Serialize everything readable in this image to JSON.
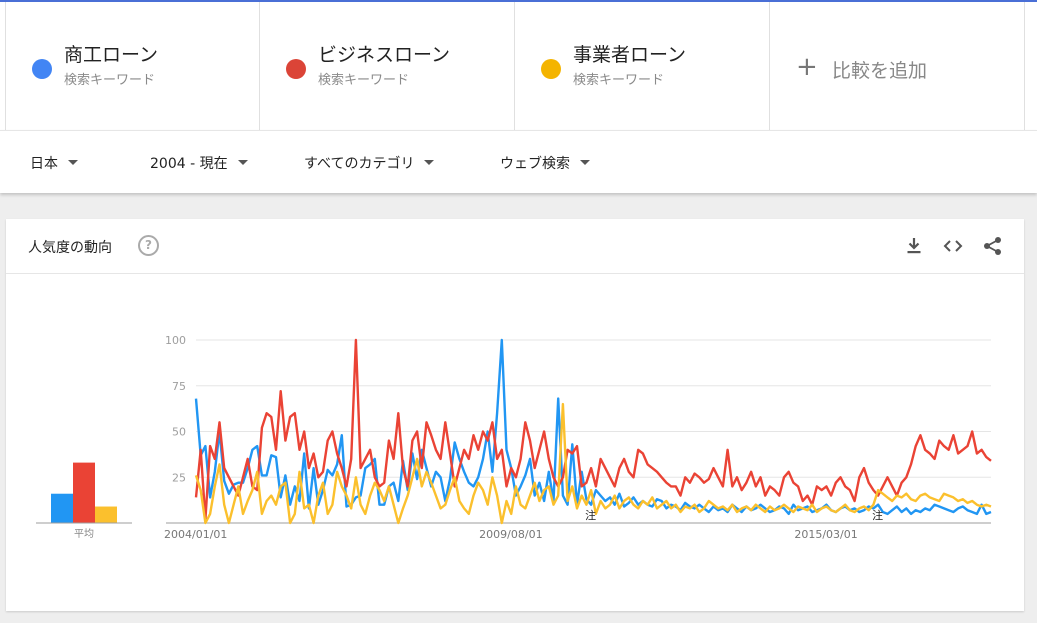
{
  "compare": {
    "terms": [
      {
        "name": "商工ローン",
        "sub": "検索キーワード",
        "color": "#4285f4"
      },
      {
        "name": "ビジネスローン",
        "sub": "検索キーワード",
        "color": "#db4437"
      },
      {
        "name": "事業者ローン",
        "sub": "検索キーワード",
        "color": "#f4b400"
      }
    ],
    "add_label": "比較を追加",
    "add_icon": "plus-icon"
  },
  "filters": {
    "region": "日本",
    "period": "2004 - 現在",
    "category": "すべてのカテゴリ",
    "search_type": "ウェブ検索"
  },
  "card": {
    "title": "人気度の動向",
    "help_icon": "help-icon",
    "download_icon": "download-icon",
    "embed_icon": "embed-icon",
    "share_icon": "share-icon"
  },
  "chart_data": {
    "type": "line",
    "y_ticks": [
      "100",
      "75",
      "50",
      "25"
    ],
    "ylim": [
      0,
      100
    ],
    "x_tick_labels": [
      "2004/01/01",
      "2009/08/01",
      "2015/03/01"
    ],
    "x_tick_positions": [
      0,
      67,
      134
    ],
    "n_points": 170,
    "notes": [
      {
        "label": "注",
        "index": 84
      },
      {
        "label": "注",
        "index": 145
      }
    ],
    "average_label": "平均",
    "averages": [
      16,
      33,
      9
    ],
    "series": [
      {
        "name": "商工ローン",
        "color": "#2196f3",
        "values": [
          68,
          37,
          42,
          14,
          28,
          50,
          23,
          16,
          21,
          22,
          22,
          30,
          40,
          42,
          26,
          26,
          37,
          36,
          14,
          26,
          10,
          20,
          12,
          38,
          8,
          30,
          10,
          18,
          29,
          26,
          32,
          48,
          9,
          10,
          14,
          15,
          30,
          32,
          35,
          10,
          10,
          20,
          22,
          12,
          34,
          18,
          38,
          24,
          40,
          30,
          20,
          28,
          25,
          12,
          24,
          44,
          35,
          28,
          22,
          20,
          25,
          35,
          50,
          28,
          60,
          100,
          40,
          30,
          15,
          20,
          26,
          35,
          15,
          22,
          12,
          28,
          12,
          68,
          15,
          10,
          43,
          10,
          28,
          13,
          10,
          18,
          15,
          12,
          14,
          10,
          16,
          9,
          11,
          14,
          10,
          12,
          10,
          9,
          13,
          12,
          8,
          10,
          9,
          7,
          11,
          9,
          8,
          10,
          8,
          6,
          9,
          7,
          8,
          6,
          10,
          8,
          6,
          9,
          7,
          8,
          10,
          8,
          6,
          7,
          9,
          8,
          5,
          10,
          7,
          8,
          9,
          6,
          7,
          8,
          10,
          7,
          6,
          8,
          9,
          7,
          8,
          6,
          7,
          9,
          8,
          10,
          6,
          5,
          7,
          9,
          6,
          8,
          5,
          7,
          6,
          8,
          7,
          10,
          9,
          8,
          7,
          6,
          8,
          9,
          7,
          6,
          5,
          10,
          5,
          6
        ]
      },
      {
        "name": "ビジネスローン",
        "color": "#ea4335",
        "values": [
          14,
          40,
          2,
          42,
          35,
          55,
          30,
          25,
          20,
          15,
          25,
          35,
          20,
          18,
          52,
          60,
          58,
          40,
          72,
          45,
          58,
          60,
          40,
          50,
          30,
          38,
          25,
          28,
          45,
          50,
          38,
          30,
          20,
          35,
          100,
          30,
          35,
          40,
          25,
          20,
          22,
          45,
          35,
          60,
          30,
          20,
          45,
          50,
          30,
          55,
          48,
          40,
          35,
          55,
          38,
          20,
          30,
          40,
          35,
          48,
          40,
          50,
          45,
          55,
          35,
          40,
          20,
          30,
          25,
          35,
          55,
          45,
          30,
          40,
          50,
          35,
          25,
          20,
          25,
          40,
          38,
          42,
          20,
          22,
          30,
          20,
          35,
          30,
          25,
          20,
          30,
          35,
          28,
          25,
          40,
          38,
          32,
          30,
          28,
          25,
          22,
          20,
          20,
          15,
          25,
          22,
          27,
          25,
          22,
          24,
          30,
          25,
          20,
          40,
          20,
          25,
          18,
          22,
          28,
          20,
          25,
          15,
          20,
          18,
          15,
          25,
          28,
          22,
          20,
          12,
          15,
          10,
          20,
          18,
          20,
          15,
          22,
          25,
          20,
          18,
          12,
          25,
          30,
          22,
          18,
          15,
          20,
          25,
          20,
          15,
          22,
          25,
          32,
          42,
          48,
          40,
          38,
          35,
          45,
          42,
          40,
          48,
          38,
          40,
          42,
          50,
          38,
          40,
          36,
          34
        ]
      },
      {
        "name": "事業者ローン",
        "color": "#fbc02d",
        "values": [
          26,
          18,
          0,
          5,
          20,
          32,
          10,
          0,
          10,
          20,
          5,
          12,
          18,
          28,
          5,
          12,
          15,
          10,
          20,
          22,
          0,
          5,
          28,
          8,
          10,
          0,
          15,
          22,
          5,
          10,
          28,
          20,
          15,
          8,
          25,
          10,
          5,
          15,
          22,
          18,
          12,
          20,
          10,
          0,
          8,
          15,
          25,
          35,
          20,
          28,
          22,
          15,
          8,
          10,
          18,
          25,
          12,
          8,
          5,
          15,
          22,
          18,
          10,
          25,
          15,
          0,
          12,
          5,
          20,
          10,
          8,
          15,
          22,
          12,
          18,
          20,
          10,
          15,
          65,
          12,
          20,
          8,
          15,
          10,
          18,
          5,
          12,
          8,
          10,
          15,
          8,
          12,
          14,
          10,
          8,
          12,
          10,
          14,
          8,
          10,
          12,
          8,
          10,
          6,
          9,
          8,
          10,
          6,
          8,
          12,
          10,
          8,
          9,
          7,
          10,
          6,
          8,
          9,
          7,
          10,
          8,
          6,
          9,
          7,
          8,
          10,
          8,
          6,
          9,
          8,
          7,
          10,
          6,
          8,
          9,
          7,
          6,
          8,
          10,
          7,
          6,
          8,
          9,
          7,
          10,
          18,
          16,
          14,
          12,
          15,
          14,
          16,
          13,
          12,
          15,
          16,
          14,
          13,
          12,
          16,
          15,
          14,
          12,
          13,
          11,
          12,
          10,
          9,
          10,
          9
        ]
      }
    ]
  }
}
